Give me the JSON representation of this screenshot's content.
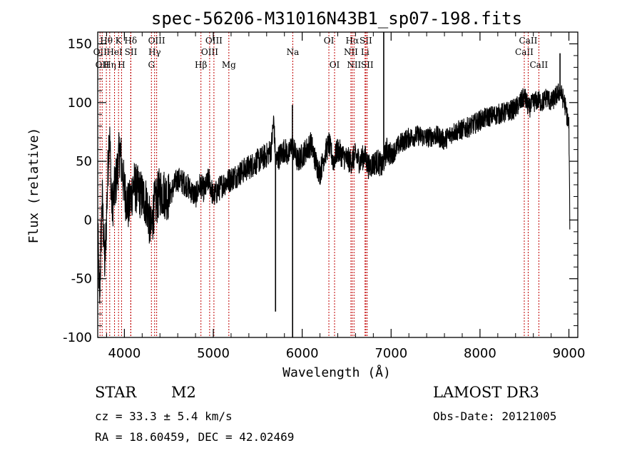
{
  "chart_data": {
    "type": "line",
    "title": "spec-56206-M31016N43B1_sp07-198.fits",
    "xlabel": "Wavelength (Å)",
    "ylabel": "Flux (relative)",
    "xlim": [
      3700,
      9100
    ],
    "ylim": [
      -100,
      160
    ],
    "x_ticks": [
      4000,
      5000,
      6000,
      7000,
      8000,
      9000
    ],
    "y_ticks": [
      -100,
      -50,
      0,
      50,
      100,
      150
    ],
    "grid": false,
    "spectrum_anchors": [
      [
        3700,
        -5
      ],
      [
        3720,
        -70
      ],
      [
        3750,
        20
      ],
      [
        3780,
        -40
      ],
      [
        3800,
        5
      ],
      [
        3830,
        80
      ],
      [
        3860,
        10
      ],
      [
        3900,
        30
      ],
      [
        3950,
        60
      ],
      [
        4000,
        25
      ],
      [
        4050,
        10
      ],
      [
        4100,
        30
      ],
      [
        4150,
        25
      ],
      [
        4200,
        20
      ],
      [
        4250,
        15
      ],
      [
        4300,
        -10
      ],
      [
        4330,
        10
      ],
      [
        4400,
        25
      ],
      [
        4500,
        20
      ],
      [
        4600,
        35
      ],
      [
        4700,
        30
      ],
      [
        4800,
        20
      ],
      [
        4850,
        30
      ],
      [
        4900,
        25
      ],
      [
        4950,
        35
      ],
      [
        5000,
        20
      ],
      [
        5100,
        30
      ],
      [
        5200,
        35
      ],
      [
        5300,
        40
      ],
      [
        5400,
        45
      ],
      [
        5500,
        50
      ],
      [
        5600,
        55
      ],
      [
        5650,
        60
      ],
      [
        5680,
        85
      ],
      [
        5700,
        50
      ],
      [
        5750,
        55
      ],
      [
        5800,
        60
      ],
      [
        5850,
        55
      ],
      [
        5880,
        65
      ],
      [
        5950,
        50
      ],
      [
        6000,
        55
      ],
      [
        6050,
        60
      ],
      [
        6100,
        65
      ],
      [
        6150,
        50
      ],
      [
        6200,
        40
      ],
      [
        6250,
        55
      ],
      [
        6300,
        65
      ],
      [
        6350,
        50
      ],
      [
        6400,
        60
      ],
      [
        6450,
        55
      ],
      [
        6500,
        52
      ],
      [
        6550,
        50
      ],
      [
        6600,
        55
      ],
      [
        6650,
        50
      ],
      [
        6700,
        55
      ],
      [
        6750,
        45
      ],
      [
        6800,
        48
      ],
      [
        6850,
        50
      ],
      [
        6900,
        45
      ],
      [
        6950,
        60
      ],
      [
        7000,
        55
      ],
      [
        7100,
        65
      ],
      [
        7200,
        70
      ],
      [
        7300,
        72
      ],
      [
        7400,
        70
      ],
      [
        7500,
        72
      ],
      [
        7600,
        68
      ],
      [
        7700,
        75
      ],
      [
        7800,
        77
      ],
      [
        7900,
        80
      ],
      [
        8000,
        85
      ],
      [
        8100,
        88
      ],
      [
        8200,
        90
      ],
      [
        8300,
        92
      ],
      [
        8400,
        95
      ],
      [
        8450,
        100
      ],
      [
        8500,
        105
      ],
      [
        8550,
        95
      ],
      [
        8600,
        100
      ],
      [
        8650,
        102
      ],
      [
        8700,
        100
      ],
      [
        8750,
        105
      ],
      [
        8800,
        100
      ],
      [
        8850,
        105
      ],
      [
        8900,
        110
      ],
      [
        8950,
        100
      ],
      [
        9000,
        80
      ],
      [
        9010,
        0
      ]
    ],
    "spikes": [
      {
        "x": 5700,
        "y": -78
      },
      {
        "x": 5890,
        "y": 98
      },
      {
        "x": 5892,
        "y": -100
      },
      {
        "x": 6917,
        "y": 160
      },
      {
        "x": 8900,
        "y": 142
      }
    ],
    "line_markers": [
      {
        "x": 3726,
        "labels": [
          "OII"
        ],
        "row": 1
      },
      {
        "x": 3750,
        "labels": [
          "OII"
        ],
        "row": 2
      },
      {
        "x": 3797,
        "labels": [
          "Hθ"
        ],
        "row": 0
      },
      {
        "x": 3835,
        "labels": [
          "Hη"
        ],
        "row": 2
      },
      {
        "x": 3889,
        "labels": [
          "HeI"
        ],
        "row": 1
      },
      {
        "x": 3934,
        "labels": [
          "K"
        ],
        "row": 0
      },
      {
        "x": 3968,
        "labels": [
          "H"
        ],
        "row": 2
      },
      {
        "x": 4071,
        "labels": [
          "Hδ"
        ],
        "row": 0
      },
      {
        "x": 4073,
        "labels": [
          "SII"
        ],
        "row": 1
      },
      {
        "x": 4304,
        "labels": [
          "G"
        ],
        "row": 2
      },
      {
        "x": 4340,
        "labels": [
          "Hγ"
        ],
        "row": 1
      },
      {
        "x": 4363,
        "labels": [
          "OIII"
        ],
        "row": 0
      },
      {
        "x": 4861,
        "labels": [
          "Hβ"
        ],
        "row": 2
      },
      {
        "x": 4959,
        "labels": [
          "OIII"
        ],
        "row": 1
      },
      {
        "x": 5007,
        "labels": [
          "OIII"
        ],
        "row": 0
      },
      {
        "x": 5175,
        "labels": [
          "Mg"
        ],
        "row": 2
      },
      {
        "x": 5894,
        "labels": [
          "Na"
        ],
        "row": 1
      },
      {
        "x": 6300,
        "labels": [
          "OI"
        ],
        "row": 0
      },
      {
        "x": 6364,
        "labels": [
          "OI"
        ],
        "row": 2
      },
      {
        "x": 6548,
        "labels": [
          "NII"
        ],
        "row": 1
      },
      {
        "x": 6563,
        "labels": [
          "Hα"
        ],
        "row": 0
      },
      {
        "x": 6583,
        "labels": [
          "NII"
        ],
        "row": 2
      },
      {
        "x": 6707,
        "labels": [
          "Li"
        ],
        "row": 1
      },
      {
        "x": 6716,
        "labels": [
          "SII"
        ],
        "row": 0
      },
      {
        "x": 6731,
        "labels": [
          "SII"
        ],
        "row": 2
      },
      {
        "x": 8498,
        "labels": [
          "CaII"
        ],
        "row": 1
      },
      {
        "x": 8542,
        "labels": [
          "CaII"
        ],
        "row": 0
      },
      {
        "x": 8662,
        "labels": [
          "CaII"
        ],
        "row": 2
      }
    ]
  },
  "info": {
    "object_class": "STAR",
    "subclass": "M2",
    "survey": "LAMOST DR3",
    "redshift_line": "cz = 33.3 ± 5.4 km/s",
    "obs_date_line": "Obs-Date: 20121005",
    "coords_line": "RA =  18.60459, DEC =  42.02469"
  }
}
